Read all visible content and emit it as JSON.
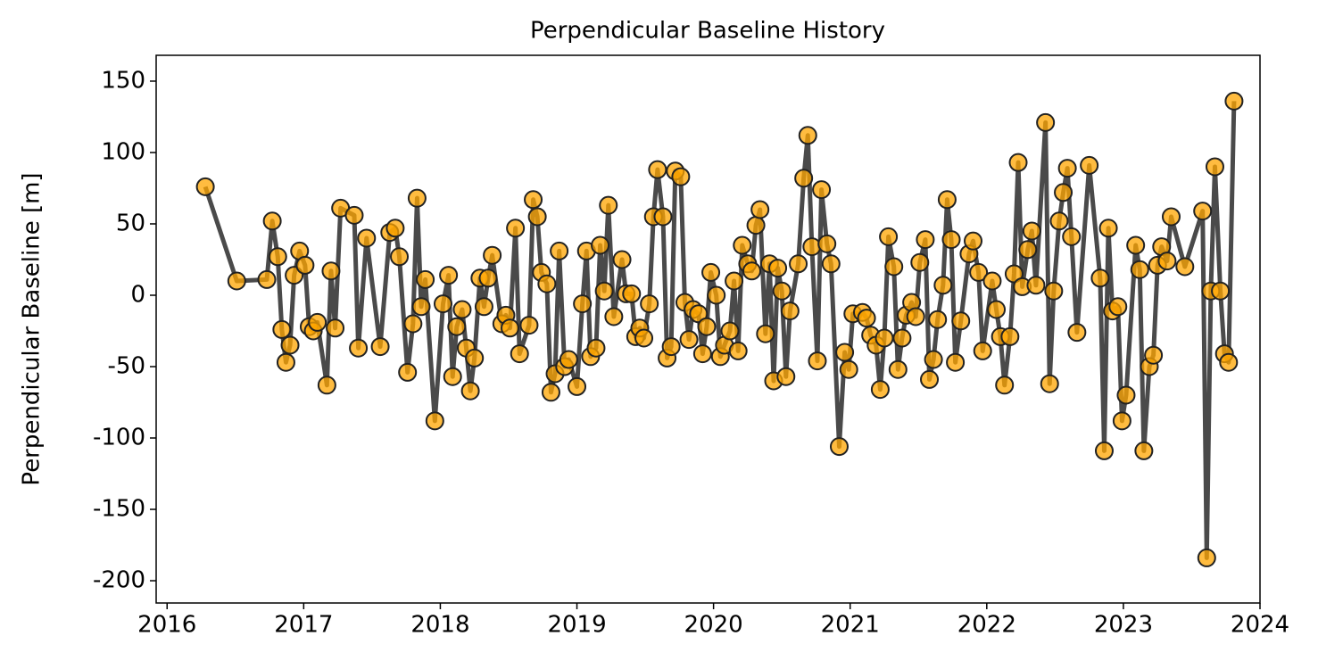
{
  "chart_data": {
    "type": "line",
    "title": "Perpendicular Baseline History",
    "ylabel": "Perpendicular Baseline [m]",
    "line_color": "#404040",
    "marker_color": "#ffa500",
    "xlim": [
      2015.92,
      2024
    ],
    "xticks": [
      2016,
      2017,
      2018,
      2019,
      2020,
      2021,
      2022,
      2023,
      2024
    ],
    "ylim": [
      -215.6,
      168.1
    ],
    "yticks": [
      -200,
      -150,
      -100,
      -50,
      0,
      50,
      100,
      150
    ],
    "x": [
      2016.28,
      2016.51,
      2016.73,
      2016.77,
      2016.81,
      2016.84,
      2016.87,
      2016.9,
      2016.93,
      2016.97,
      2017.01,
      2017.04,
      2017.07,
      2017.1,
      2017.17,
      2017.2,
      2017.23,
      2017.27,
      2017.37,
      2017.4,
      2017.46,
      2017.56,
      2017.63,
      2017.67,
      2017.7,
      2017.76,
      2017.8,
      2017.83,
      2017.86,
      2017.89,
      2017.96,
      2018.02,
      2018.06,
      2018.09,
      2018.12,
      2018.16,
      2018.19,
      2018.22,
      2018.25,
      2018.29,
      2018.32,
      2018.35,
      2018.38,
      2018.45,
      2018.48,
      2018.51,
      2018.55,
      2018.58,
      2018.65,
      2018.68,
      2018.71,
      2018.74,
      2018.78,
      2018.81,
      2018.84,
      2018.87,
      2018.91,
      2018.94,
      2019.0,
      2019.04,
      2019.07,
      2019.1,
      2019.14,
      2019.17,
      2019.2,
      2019.23,
      2019.27,
      2019.33,
      2019.36,
      2019.4,
      2019.43,
      2019.46,
      2019.49,
      2019.53,
      2019.56,
      2019.59,
      2019.63,
      2019.66,
      2019.69,
      2019.72,
      2019.76,
      2019.79,
      2019.82,
      2019.85,
      2019.89,
      2019.92,
      2019.95,
      2019.98,
      2020.02,
      2020.05,
      2020.08,
      2020.12,
      2020.15,
      2020.18,
      2020.21,
      2020.25,
      2020.28,
      2020.31,
      2020.34,
      2020.38,
      2020.41,
      2020.44,
      2020.47,
      2020.5,
      2020.53,
      2020.56,
      2020.62,
      2020.66,
      2020.69,
      2020.72,
      2020.76,
      2020.79,
      2020.83,
      2020.86,
      2020.92,
      2020.96,
      2020.99,
      2021.02,
      2021.09,
      2021.12,
      2021.15,
      2021.19,
      2021.22,
      2021.25,
      2021.28,
      2021.32,
      2021.35,
      2021.38,
      2021.41,
      2021.45,
      2021.48,
      2021.51,
      2021.55,
      2021.58,
      2021.61,
      2021.64,
      2021.68,
      2021.71,
      2021.74,
      2021.77,
      2021.81,
      2021.87,
      2021.9,
      2021.94,
      2021.97,
      2022.04,
      2022.07,
      2022.1,
      2022.13,
      2022.17,
      2022.2,
      2022.23,
      2022.26,
      2022.3,
      2022.33,
      2022.36,
      2022.43,
      2022.46,
      2022.49,
      2022.53,
      2022.56,
      2022.59,
      2022.62,
      2022.66,
      2022.75,
      2022.83,
      2022.86,
      2022.89,
      2022.92,
      2022.96,
      2022.99,
      2023.02,
      2023.09,
      2023.12,
      2023.15,
      2023.19,
      2023.22,
      2023.25,
      2023.28,
      2023.32,
      2023.35,
      2023.45,
      2023.58,
      2023.61,
      2023.64,
      2023.67,
      2023.71,
      2023.74,
      2023.77,
      2023.81
    ],
    "values": [
      76,
      10,
      11,
      52,
      27,
      -24,
      -47,
      -35,
      14,
      31,
      21,
      -22,
      -25,
      -19,
      -63,
      17,
      -23,
      61,
      56,
      -37,
      40,
      -36,
      44,
      47,
      27,
      -54,
      -20,
      68,
      -8,
      11,
      -88,
      -6,
      14,
      -57,
      -22,
      -10,
      -37,
      -67,
      -44,
      12,
      -8,
      12,
      28,
      -20,
      -14,
      -23,
      47,
      -41,
      -21,
      67,
      55,
      16,
      8,
      -68,
      -55,
      31,
      -50,
      -45,
      -64,
      -6,
      31,
      -43,
      -37,
      35,
      3,
      63,
      -15,
      25,
      1,
      1,
      -29,
      -23,
      -30,
      -6,
      55,
      88,
      55,
      -44,
      -36,
      87,
      83,
      -5,
      -31,
      -10,
      -13,
      -41,
      -22,
      16,
      0,
      -43,
      -35,
      -25,
      10,
      -39,
      35,
      22,
      17,
      49,
      60,
      -27,
      22,
      -60,
      19,
      3,
      -57,
      -11,
      22,
      82,
      112,
      34,
      -46,
      74,
      36,
      22,
      -106,
      -40,
      -52,
      -13,
      -12,
      -16,
      -28,
      -35,
      -66,
      -30,
      41,
      20,
      -52,
      -30,
      -14,
      -5,
      -15,
      23,
      39,
      -59,
      -45,
      -17,
      7,
      67,
      39,
      -47,
      -18,
      29,
      38,
      16,
      -39,
      10,
      -10,
      -29,
      -63,
      -29,
      15,
      93,
      6,
      32,
      45,
      7,
      121,
      -62,
      3,
      52,
      72,
      89,
      41,
      -26,
      91,
      12,
      -109,
      47,
      -11,
      -8,
      -88,
      -70,
      35,
      18,
      -109,
      -50,
      -42,
      21,
      34,
      24,
      55,
      20,
      59,
      -184,
      3,
      90,
      3,
      -41,
      -47,
      136
    ]
  }
}
